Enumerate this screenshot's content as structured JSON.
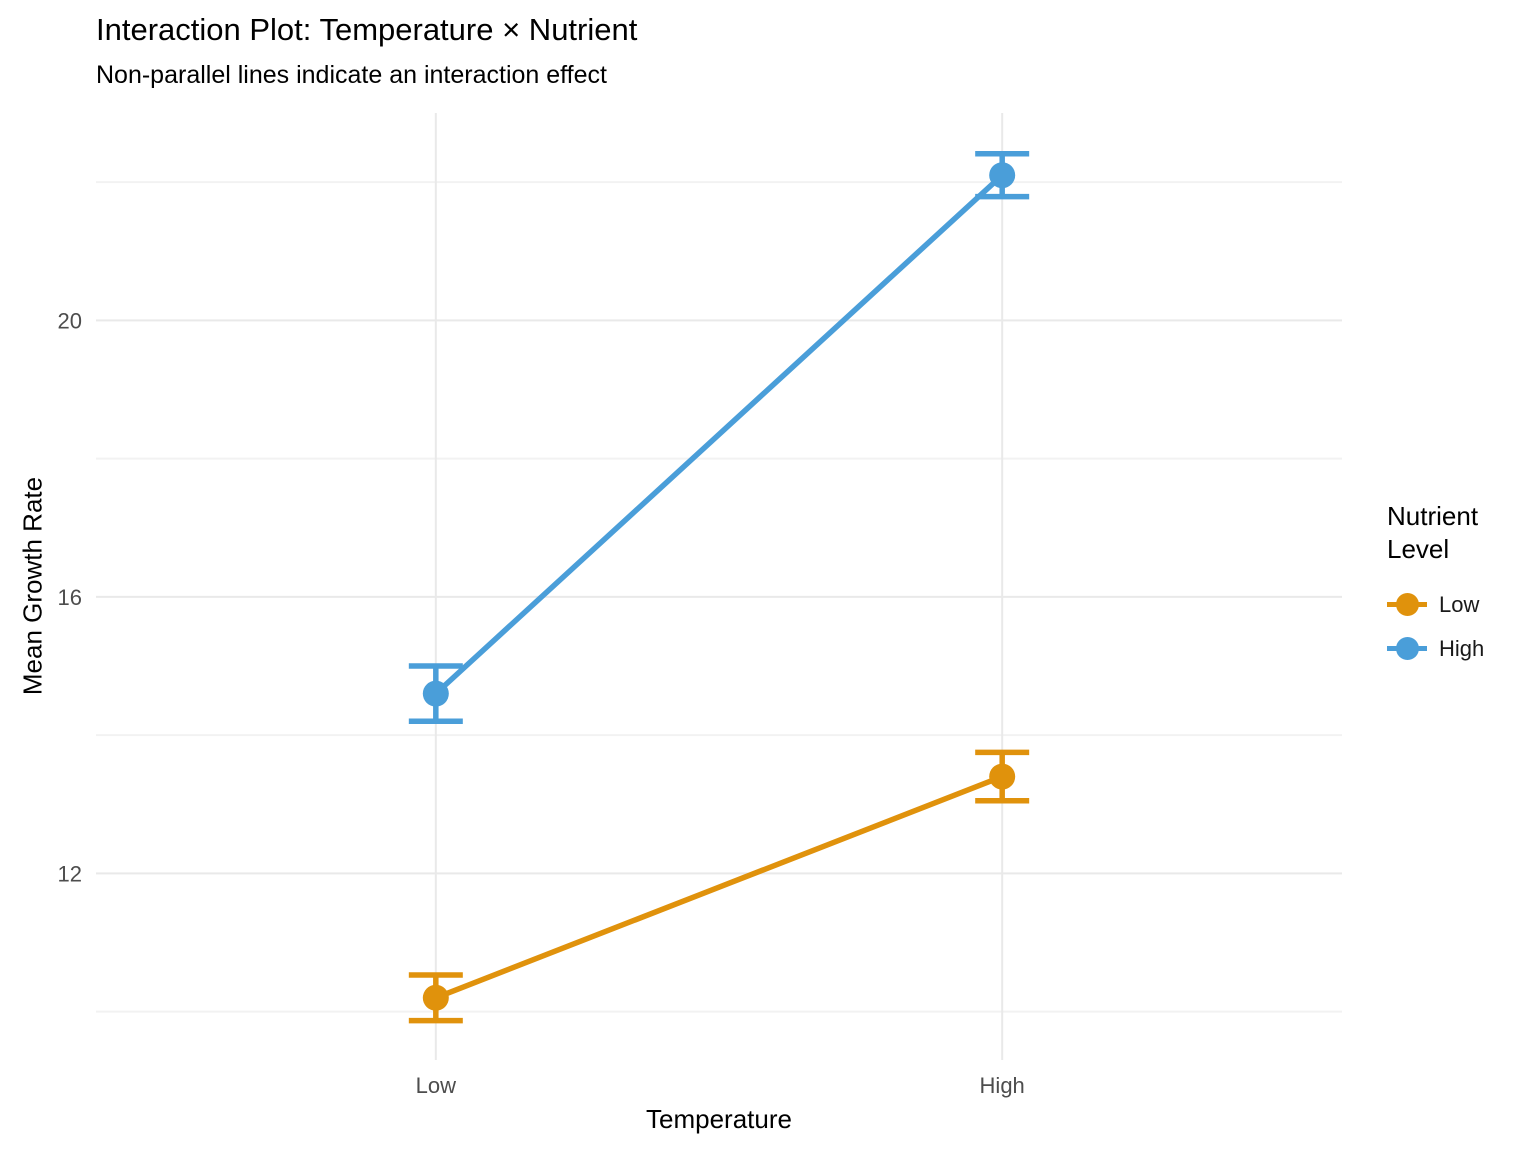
{
  "chart_data": {
    "type": "line",
    "title": "Interaction Plot: Temperature × Nutrient",
    "subtitle": "Non-parallel lines indicate an interaction effect",
    "xlabel": "Temperature",
    "ylabel": "Mean Growth Rate",
    "categories": [
      "Low",
      "High"
    ],
    "series": [
      {
        "name": "Low",
        "color": "#E0920C",
        "values": [
          10.2,
          13.4
        ],
        "error": [
          0.33,
          0.35
        ]
      },
      {
        "name": "High",
        "color": "#4A9ED9",
        "values": [
          14.6,
          22.1
        ],
        "error": [
          0.4,
          0.31
        ]
      }
    ],
    "yticks": [
      12,
      16,
      20
    ],
    "yticks_minor": [
      10,
      14,
      18,
      22
    ],
    "ylim": [
      9.3,
      23.0
    ],
    "grid": true,
    "legend": {
      "title": "Nutrient Level",
      "position": "right",
      "items": [
        "Low",
        "High"
      ]
    },
    "colors": {
      "grid_major": "#E9E9E9",
      "grid_minor": "#F2F2F2",
      "tick_label": "#4D4D4D",
      "text": "#000000",
      "background": "#FFFFFF"
    }
  }
}
